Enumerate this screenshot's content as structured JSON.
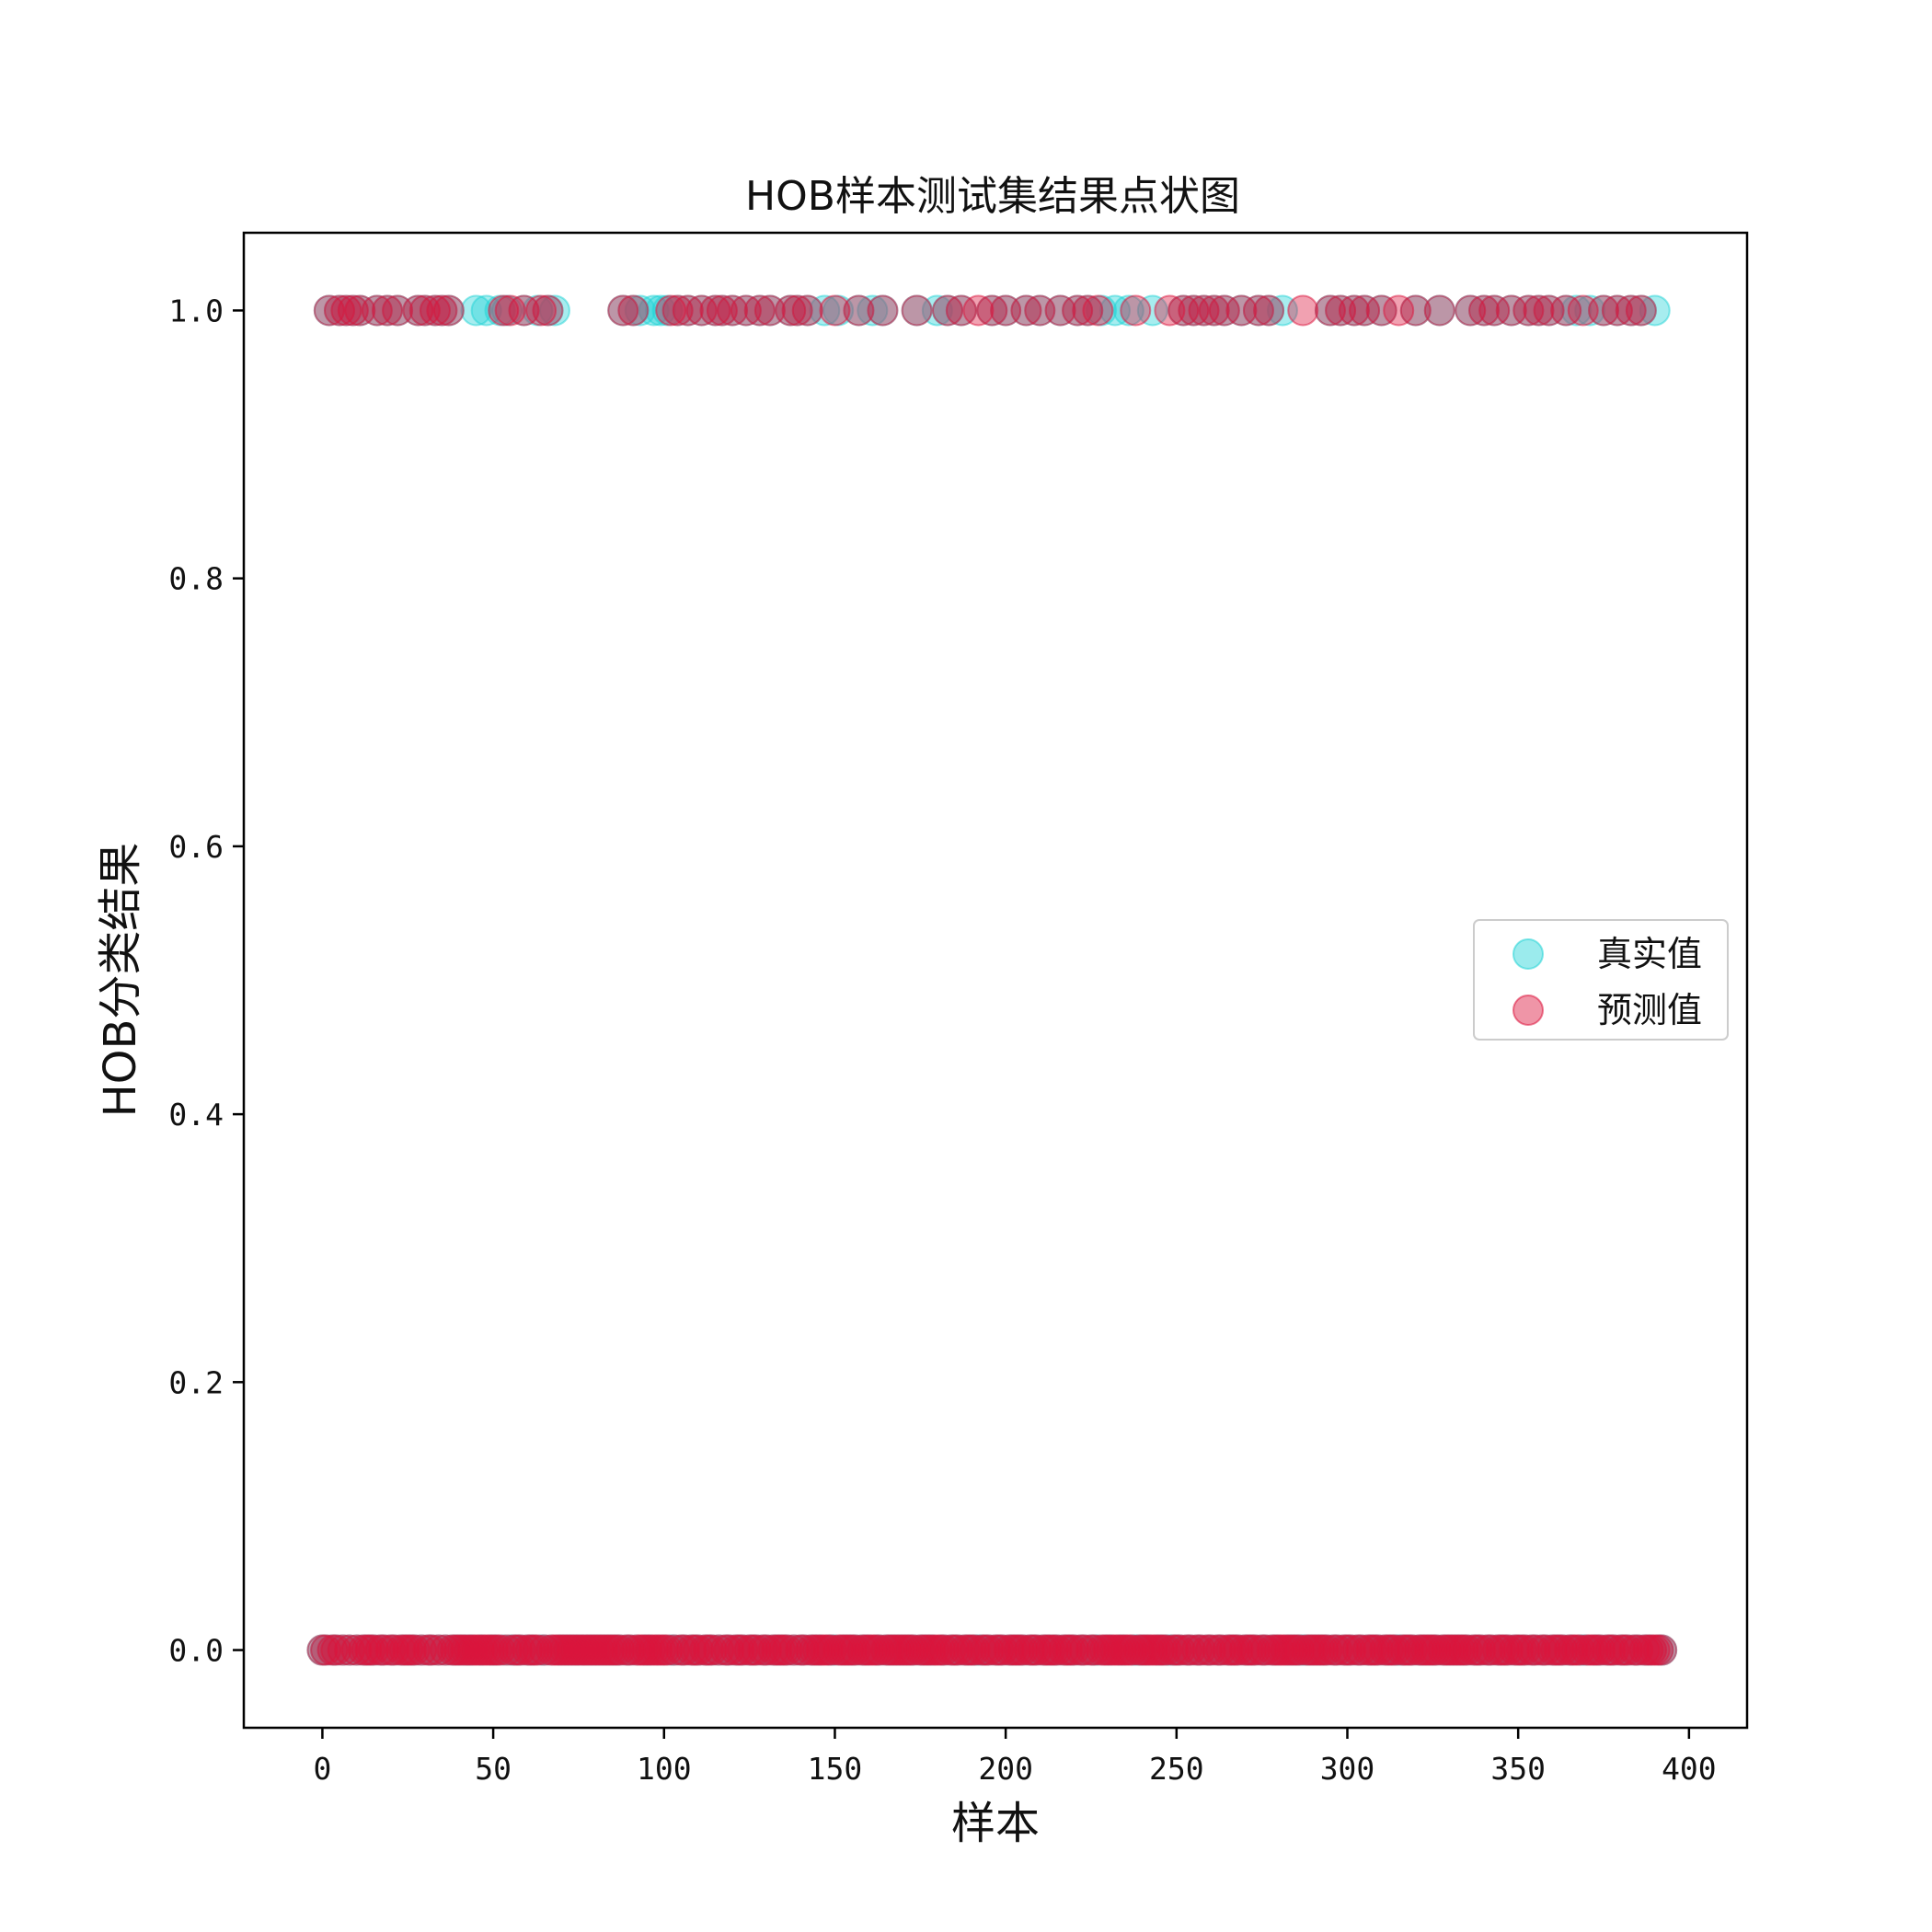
{
  "chart_data": {
    "type": "scatter",
    "title": "HOB样本测试集结果点状图",
    "xlabel": "样本",
    "ylabel": "HOB分类结果",
    "xlim": [
      -23,
      417
    ],
    "ylim": [
      -0.058,
      1.058
    ],
    "xticks": [
      0,
      50,
      100,
      150,
      200,
      250,
      300,
      350,
      400
    ],
    "yticks": [
      0.0,
      0.2,
      0.4,
      0.6,
      0.8,
      1.0
    ],
    "xtick_labels": [
      "0",
      "50",
      "100",
      "150",
      "200",
      "250",
      "300",
      "350",
      "400"
    ],
    "ytick_labels": [
      "0.0",
      "0.2",
      "0.4",
      "0.6",
      "0.8",
      "1.0"
    ],
    "grid": false,
    "legend_position": "center-right",
    "series": [
      {
        "name": "真实值",
        "color": "#22d3d6",
        "ones": [
          2,
          5,
          7,
          9,
          11,
          16,
          19,
          22,
          28,
          30,
          33,
          35,
          37,
          45,
          48,
          52,
          54,
          59,
          63,
          66,
          68,
          88,
          91,
          93,
          97,
          99,
          101,
          104,
          107,
          111,
          115,
          117,
          120,
          124,
          128,
          131,
          137,
          139,
          142,
          147,
          151,
          157,
          161,
          164,
          174,
          180,
          183,
          187,
          196,
          200,
          206,
          210,
          216,
          221,
          224,
          228,
          232,
          236,
          243,
          252,
          255,
          258,
          261,
          264,
          269,
          274,
          277,
          281,
          295,
          298,
          302,
          305,
          310,
          320,
          327,
          336,
          340,
          343,
          348,
          353,
          356,
          359,
          364,
          367,
          371,
          375,
          379,
          383,
          386,
          390,
          393
        ],
        "zero_range": [
          0,
          392
        ]
      },
      {
        "name": "预测值",
        "color": "#dc143c",
        "ones": [
          2,
          5,
          7,
          9,
          11,
          16,
          19,
          22,
          28,
          30,
          33,
          35,
          37,
          53,
          55,
          59,
          64,
          66,
          88,
          91,
          102,
          104,
          107,
          111,
          115,
          117,
          120,
          124,
          128,
          131,
          137,
          139,
          142,
          150,
          157,
          164,
          174,
          183,
          187,
          192,
          196,
          200,
          206,
          210,
          216,
          221,
          224,
          227,
          238,
          248,
          252,
          255,
          258,
          261,
          264,
          269,
          274,
          277,
          287,
          295,
          298,
          302,
          305,
          310,
          315,
          320,
          327,
          336,
          340,
          343,
          348,
          353,
          356,
          359,
          364,
          369,
          375,
          379,
          383,
          386,
          393
        ],
        "zero_range": [
          0,
          392
        ]
      }
    ]
  }
}
